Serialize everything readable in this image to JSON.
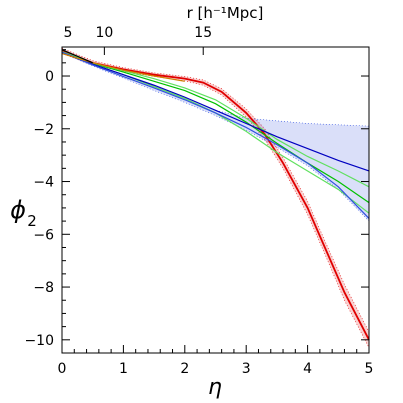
{
  "chart_data": {
    "type": "line",
    "xlabel": "η",
    "ylabel_main": "ϕ",
    "ylabel_sub": "2",
    "top_axis_label": "r [h⁻¹Mpc]",
    "xlim": [
      0,
      5
    ],
    "ylim": [
      -10.5,
      1.1
    ],
    "x_ticks": [
      0,
      1,
      2,
      3,
      4,
      5
    ],
    "y_ticks": [
      0,
      -2,
      -4,
      -6,
      -8,
      -10
    ],
    "x_tick_labels": [
      "0",
      "1",
      "2",
      "3",
      "4",
      "5"
    ],
    "y_tick_labels": [
      "0",
      "−2",
      "−4",
      "−6",
      "−8",
      "−10"
    ],
    "top_ticks": [
      {
        "eta": 0.0,
        "label": "5"
      },
      {
        "eta": 0.69,
        "label": "10"
      },
      {
        "eta": 2.3,
        "label": "15"
      }
    ],
    "grid": false,
    "colors": {
      "red": "#e00000",
      "green": "#00c000",
      "light_green": "#60e060",
      "blue": "#0000c0",
      "light_blue": "#3050e0",
      "orange": "#d08000",
      "black": "#000000"
    },
    "series": [
      {
        "color": "red",
        "x": [
          0,
          0.5,
          1.0,
          1.5,
          2.0,
          2.3,
          2.6,
          3.0,
          3.3,
          3.6,
          4.0,
          4.3,
          4.6,
          5.0
        ],
        "y": [
          0.95,
          0.5,
          0.25,
          0.05,
          -0.1,
          -0.25,
          -0.6,
          -1.4,
          -2.2,
          -3.3,
          -5.0,
          -6.6,
          -8.2,
          -10.0
        ],
        "band": {
          "lower": [
            0.85,
            0.42,
            0.18,
            -0.02,
            -0.18,
            -0.35,
            -0.72,
            -1.55,
            -2.4,
            -3.5,
            -5.25,
            -6.85,
            -8.5,
            -10.3
          ],
          "upper": [
            1.05,
            0.58,
            0.32,
            0.12,
            -0.02,
            -0.15,
            -0.48,
            -1.25,
            -2.0,
            -3.1,
            -4.75,
            -6.35,
            -7.9,
            -9.7
          ]
        }
      },
      {
        "color": "green",
        "x": [
          0,
          0.5,
          1.0,
          1.5,
          2.0,
          2.5,
          3.0,
          3.5,
          4.0,
          4.5,
          5.0
        ],
        "y": [
          0.9,
          0.48,
          0.15,
          -0.2,
          -0.55,
          -1.05,
          -1.75,
          -2.55,
          -3.3,
          -4.0,
          -4.8
        ]
      },
      {
        "color": "light_green",
        "x": [
          0,
          0.5,
          1.0,
          1.5,
          2.0,
          2.5,
          3.0,
          3.5,
          4.0,
          4.5,
          5.0
        ],
        "y": [
          0.9,
          0.45,
          0.05,
          -0.4,
          -0.85,
          -1.4,
          -2.1,
          -2.9,
          -3.6,
          -4.3,
          -5.2
        ]
      },
      {
        "color": "light_green",
        "x": [
          0,
          0.5,
          1.0,
          1.5,
          2.0,
          2.5,
          3.0,
          3.5,
          4.0,
          4.5,
          5.0
        ],
        "y": [
          0.92,
          0.5,
          0.2,
          -0.1,
          -0.45,
          -0.9,
          -1.6,
          -2.4,
          -3.05,
          -3.6,
          -4.2
        ]
      },
      {
        "color": "blue",
        "x": [
          0,
          0.5,
          1.0,
          1.5,
          2.0,
          2.5,
          3.0,
          3.5,
          4.0,
          4.5,
          5.0
        ],
        "y": [
          0.9,
          0.45,
          0.05,
          -0.35,
          -0.8,
          -1.3,
          -1.8,
          -2.3,
          -2.75,
          -3.2,
          -3.6
        ]
      },
      {
        "color": "light_blue",
        "x": [
          0,
          0.5,
          1.0,
          1.5,
          2.0,
          2.5,
          3.0,
          3.5,
          4.0,
          4.5,
          5.0
        ],
        "y": [
          0.9,
          0.42,
          -0.02,
          -0.45,
          -0.9,
          -1.4,
          -1.95,
          -2.6,
          -3.3,
          -4.2,
          -5.4
        ],
        "band": {
          "lower": [
            0.88,
            0.38,
            -0.08,
            -0.55,
            -1.0,
            -1.5,
            -2.05,
            -2.7,
            -3.4,
            -4.3,
            -5.5
          ],
          "upper": [
            0.92,
            0.46,
            0.04,
            -0.35,
            -0.8,
            -1.3,
            -1.6,
            -1.7,
            -1.8,
            -1.85,
            -1.9
          ]
        }
      },
      {
        "color": "orange",
        "x": [
          0,
          0.5,
          1.0,
          1.5,
          2.0
        ],
        "y": [
          0.85,
          0.5,
          0.22,
          0.0,
          -0.2
        ]
      },
      {
        "color": "black",
        "x": [
          0,
          0.5
        ],
        "y": [
          1.0,
          0.5
        ]
      }
    ]
  }
}
